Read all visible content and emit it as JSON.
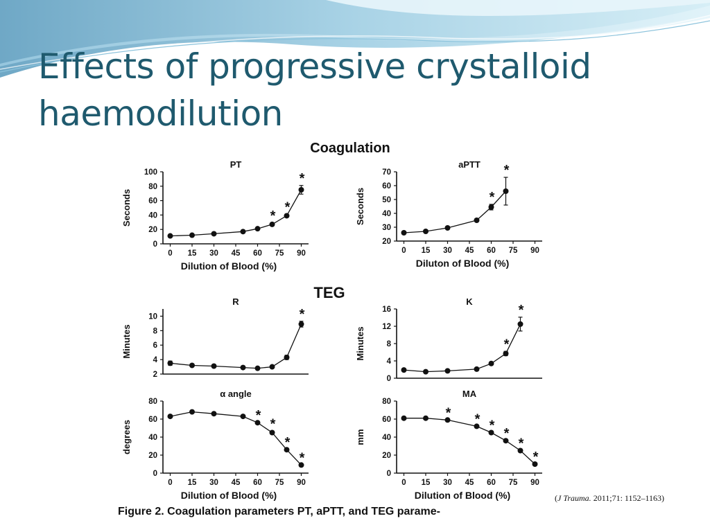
{
  "slide": {
    "title": "Effects of progressive crystalloid haemodilution",
    "citation_journal": "J Trauma.",
    "citation_ref": " 2011;71: 1152–1163)"
  },
  "figure": {
    "coagulation_heading": "Coagulation",
    "teg_heading": "TEG",
    "caption": "Figure 2. Coagulation parameters PT, aPTT, and TEG parame-"
  },
  "colors": {
    "marker": "#111111",
    "line": "#111111",
    "title": "#1f5a6e"
  },
  "chart_data": [
    {
      "type": "line",
      "title": "PT",
      "xlabel": "Dilution of Blood (%)",
      "ylabel": "Seconds",
      "x_ticks": [
        0,
        15,
        30,
        45,
        60,
        75,
        90
      ],
      "y_ticks": [
        0,
        20,
        40,
        60,
        80,
        100
      ],
      "xlim": [
        -5,
        95
      ],
      "ylim": [
        0,
        100
      ],
      "x": [
        0,
        15,
        30,
        50,
        60,
        70,
        80,
        90
      ],
      "y": [
        11,
        12,
        14,
        17,
        21,
        27,
        39,
        75
      ],
      "error": [
        0,
        0,
        0,
        0,
        0,
        2,
        2,
        6
      ],
      "significant": [
        false,
        false,
        false,
        false,
        false,
        true,
        true,
        true
      ]
    },
    {
      "type": "line",
      "title": "aPTT",
      "xlabel": "Diluton of Blood (%)",
      "ylabel": "Seconds",
      "x_ticks": [
        0,
        15,
        30,
        45,
        60,
        75,
        90
      ],
      "y_ticks": [
        20,
        30,
        40,
        50,
        60,
        70
      ],
      "xlim": [
        -5,
        95
      ],
      "ylim": [
        20,
        70
      ],
      "x": [
        0,
        15,
        30,
        50,
        60,
        70
      ],
      "y": [
        26,
        27,
        29.5,
        35,
        44.5,
        56
      ],
      "error": [
        0,
        0,
        0,
        1,
        2,
        10
      ],
      "significant": [
        false,
        false,
        false,
        false,
        true,
        true
      ]
    },
    {
      "type": "line",
      "title": "R",
      "xlabel": "",
      "ylabel": "Minutes",
      "x_ticks": [],
      "y_ticks": [
        2,
        4,
        6,
        8,
        10
      ],
      "xlim": [
        -5,
        95
      ],
      "ylim": [
        2,
        11
      ],
      "x": [
        0,
        15,
        30,
        50,
        60,
        70,
        80,
        90
      ],
      "y": [
        3.5,
        3.2,
        3.1,
        2.9,
        2.8,
        3.0,
        4.3,
        8.9
      ],
      "error": [
        0.3,
        0,
        0,
        0,
        0,
        0,
        0.3,
        0.4
      ],
      "significant": [
        false,
        false,
        false,
        false,
        false,
        false,
        false,
        true
      ]
    },
    {
      "type": "line",
      "title": "K",
      "xlabel": "",
      "ylabel": "Minutes",
      "x_ticks": [],
      "y_ticks": [
        0,
        4,
        8,
        12,
        16
      ],
      "xlim": [
        -5,
        95
      ],
      "ylim": [
        0,
        16
      ],
      "x": [
        0,
        15,
        30,
        50,
        60,
        70,
        80
      ],
      "y": [
        1.9,
        1.5,
        1.7,
        2.1,
        3.4,
        5.7,
        12.5
      ],
      "error": [
        0,
        0,
        0,
        0,
        0,
        0.5,
        1.6
      ],
      "significant": [
        false,
        false,
        false,
        false,
        false,
        true,
        true
      ]
    },
    {
      "type": "line",
      "title": "α angle",
      "xlabel": "Dilution of Blood (%)",
      "ylabel": "degrees",
      "x_ticks": [
        0,
        15,
        30,
        45,
        60,
        75,
        90
      ],
      "y_ticks": [
        0,
        20,
        40,
        60,
        80
      ],
      "xlim": [
        -5,
        95
      ],
      "ylim": [
        0,
        80
      ],
      "x": [
        0,
        15,
        30,
        50,
        60,
        70,
        80,
        90
      ],
      "y": [
        63,
        68,
        66,
        63,
        56,
        45,
        26,
        9
      ],
      "error": [
        0,
        0,
        0,
        0,
        0,
        1.5,
        0,
        0
      ],
      "significant": [
        false,
        false,
        false,
        false,
        true,
        true,
        true,
        true
      ]
    },
    {
      "type": "line",
      "title": "MA",
      "xlabel": "Dilution of Blood (%)",
      "ylabel": "mm",
      "x_ticks": [
        0,
        15,
        30,
        45,
        60,
        75,
        90
      ],
      "y_ticks": [
        0,
        20,
        40,
        60,
        80
      ],
      "xlim": [
        -5,
        95
      ],
      "ylim": [
        0,
        80
      ],
      "x": [
        0,
        15,
        30,
        50,
        60,
        70,
        80,
        90
      ],
      "y": [
        61,
        61,
        59,
        52,
        45,
        36,
        25,
        10
      ],
      "error": [
        0,
        0,
        0,
        0,
        0,
        0,
        0,
        0
      ],
      "significant": [
        false,
        false,
        true,
        true,
        true,
        true,
        true,
        true
      ]
    }
  ]
}
